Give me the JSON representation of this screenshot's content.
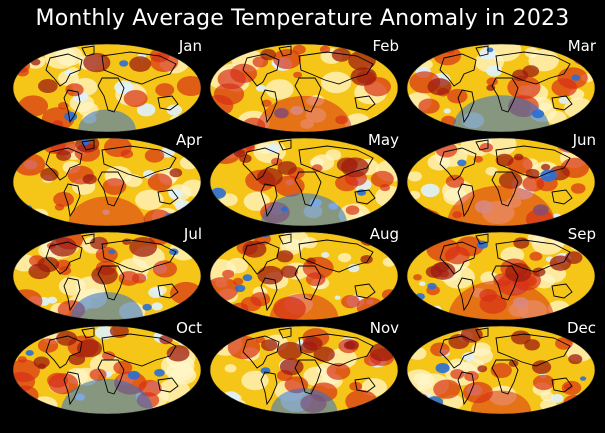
{
  "title": "Monthly Average Temperature Anomaly in 2023",
  "colors": {
    "background": "#000000",
    "warm": "#f5c518",
    "hot": "#d73016",
    "very_hot": "#9e1b0f",
    "neutral": "#fff6c8",
    "cool": "#dff2ff",
    "cold": "#2a6fd6",
    "coastline": "#000000"
  },
  "maps": [
    {
      "month": "Jan"
    },
    {
      "month": "Feb"
    },
    {
      "month": "Mar"
    },
    {
      "month": "Apr"
    },
    {
      "month": "May"
    },
    {
      "month": "Jun"
    },
    {
      "month": "Jul"
    },
    {
      "month": "Aug"
    },
    {
      "month": "Sep"
    },
    {
      "month": "Oct"
    },
    {
      "month": "Nov"
    },
    {
      "month": "Dec"
    }
  ]
}
